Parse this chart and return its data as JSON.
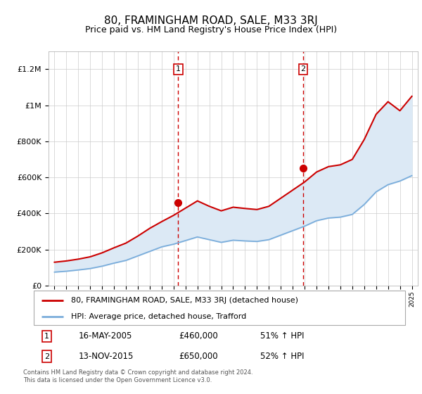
{
  "title": "80, FRAMINGHAM ROAD, SALE, M33 3RJ",
  "subtitle": "Price paid vs. HM Land Registry's House Price Index (HPI)",
  "years": [
    1995,
    1996,
    1997,
    1998,
    1999,
    2000,
    2001,
    2002,
    2003,
    2004,
    2005,
    2006,
    2007,
    2008,
    2009,
    2010,
    2011,
    2012,
    2013,
    2014,
    2015,
    2016,
    2017,
    2018,
    2019,
    2020,
    2021,
    2022,
    2023,
    2024,
    2025
  ],
  "hpi_values": [
    75000,
    80000,
    87000,
    95000,
    108000,
    125000,
    140000,
    165000,
    190000,
    215000,
    230000,
    250000,
    270000,
    255000,
    240000,
    252000,
    248000,
    245000,
    255000,
    280000,
    305000,
    330000,
    360000,
    375000,
    380000,
    395000,
    450000,
    520000,
    560000,
    580000,
    610000
  ],
  "price_values": [
    130000,
    137000,
    147000,
    160000,
    182000,
    210000,
    236000,
    275000,
    318000,
    355000,
    390000,
    430000,
    470000,
    440000,
    415000,
    435000,
    428000,
    422000,
    440000,
    485000,
    530000,
    575000,
    630000,
    660000,
    670000,
    700000,
    810000,
    950000,
    1020000,
    970000,
    1050000
  ],
  "transaction1_year": 2005.38,
  "transaction1_price": 460000,
  "transaction1_label": "1",
  "transaction1_date": "16-MAY-2005",
  "transaction1_hpi_pct": "51% ↑ HPI",
  "transaction2_year": 2015.87,
  "transaction2_price": 650000,
  "transaction2_label": "2",
  "transaction2_date": "13-NOV-2015",
  "transaction2_hpi_pct": "52% ↑ HPI",
  "red_line_color": "#cc0000",
  "blue_line_color": "#7aaddb",
  "shade_color": "#dce9f5",
  "vline_color": "#cc0000",
  "ylim": [
    0,
    1300000
  ],
  "yticks": [
    0,
    200000,
    400000,
    600000,
    800000,
    1000000,
    1200000
  ],
  "ytick_labels": [
    "£0",
    "£200K",
    "£400K",
    "£600K",
    "£800K",
    "£1M",
    "£1.2M"
  ],
  "legend1_label": "80, FRAMINGHAM ROAD, SALE, M33 3RJ (detached house)",
  "legend2_label": "HPI: Average price, detached house, Trafford",
  "footer": "Contains HM Land Registry data © Crown copyright and database right 2024.\nThis data is licensed under the Open Government Licence v3.0.",
  "grid_color": "#cccccc",
  "title_fontsize": 11,
  "subtitle_fontsize": 9,
  "axis_fontsize": 8,
  "legend_fontsize": 8
}
